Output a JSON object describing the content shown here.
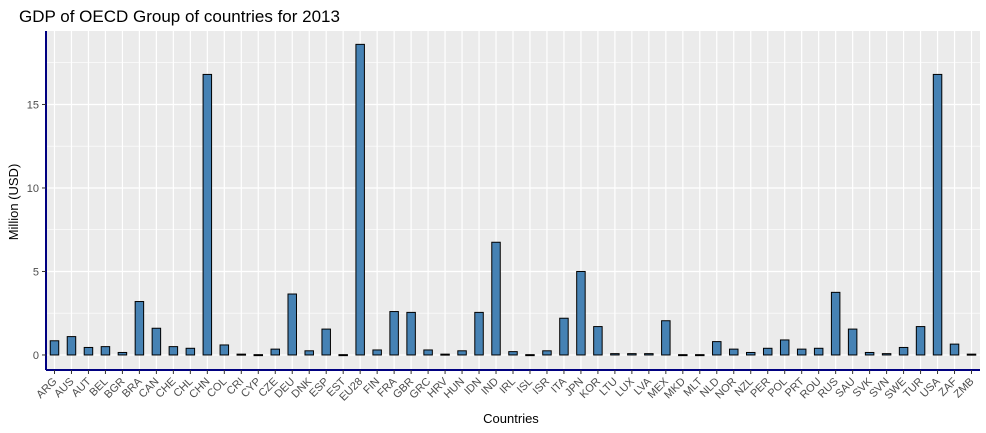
{
  "chart_data": {
    "type": "bar",
    "title": "GDP of OECD Group of countries for 2013",
    "xlabel": "Countries",
    "ylabel": "Million (USD)",
    "ylim": [
      -0.9,
      19.4
    ],
    "yticks": [
      0,
      5,
      10,
      15
    ],
    "grid": true,
    "categories": [
      "ARG",
      "AUS",
      "AUT",
      "BEL",
      "BGR",
      "BRA",
      "CAN",
      "CHE",
      "CHL",
      "CHN",
      "COL",
      "CRI",
      "CYP",
      "CZE",
      "DEU",
      "DNK",
      "ESP",
      "EST",
      "EU28",
      "FIN",
      "FRA",
      "GBR",
      "GRC",
      "HRV",
      "HUN",
      "IDN",
      "IND",
      "IRL",
      "ISL",
      "ISR",
      "ITA",
      "JPN",
      "KOR",
      "LTU",
      "LUX",
      "LVA",
      "MEX",
      "MKD",
      "MLT",
      "NLD",
      "NOR",
      "NZL",
      "PER",
      "POL",
      "PRT",
      "ROU",
      "RUS",
      "SAU",
      "SVK",
      "SVN",
      "SWE",
      "TUR",
      "USA",
      "ZAF",
      "ZMB"
    ],
    "values": [
      0.85,
      1.1,
      0.45,
      0.5,
      0.15,
      3.2,
      1.6,
      0.5,
      0.4,
      16.8,
      0.6,
      0.05,
      0.02,
      0.35,
      3.65,
      0.25,
      1.55,
      0.02,
      18.6,
      0.3,
      2.6,
      2.55,
      0.3,
      0.05,
      0.25,
      2.55,
      6.75,
      0.2,
      0.02,
      0.25,
      2.2,
      5.0,
      1.7,
      0.08,
      0.08,
      0.08,
      2.05,
      0.02,
      0.02,
      0.8,
      0.35,
      0.15,
      0.4,
      0.9,
      0.35,
      0.4,
      3.75,
      1.55,
      0.15,
      0.08,
      0.45,
      1.7,
      16.8,
      0.65,
      0.05
    ],
    "colors": {
      "bar_fill": "#4682b4",
      "bar_stroke": "#000000",
      "panel": "#ebebeb",
      "grid": "#ffffff",
      "axis_line": "#000080"
    }
  }
}
